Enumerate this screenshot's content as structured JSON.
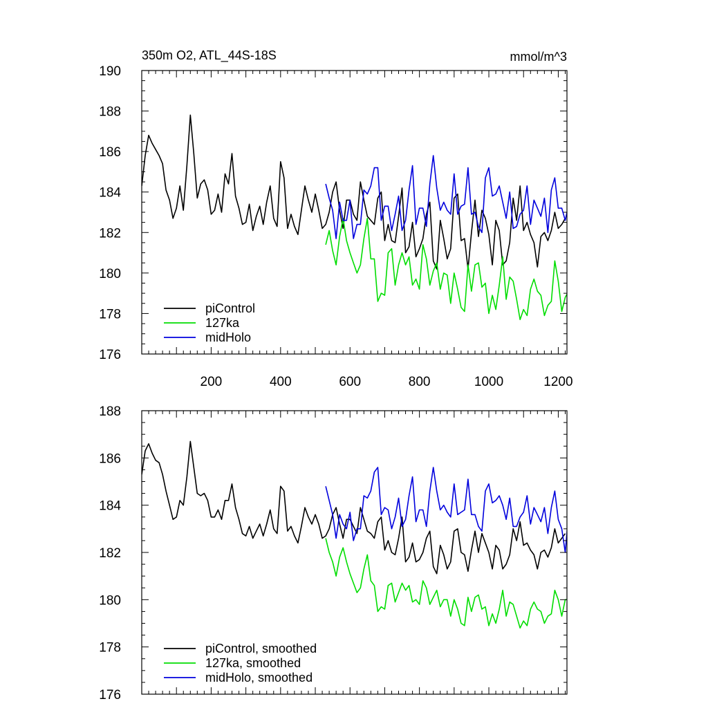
{
  "chart_data": [
    {
      "type": "line",
      "title": "350m O2, ATL_44S-18S",
      "units": "mmol/m^3",
      "xlabel": "",
      "ylabel": "",
      "xlim": [
        0,
        1225
      ],
      "ylim": [
        176,
        190
      ],
      "x_ticks": [
        200,
        400,
        600,
        800,
        1000,
        1200
      ],
      "y_ticks": [
        176,
        178,
        180,
        182,
        184,
        186,
        188,
        190
      ],
      "legend_position": "bottom-left",
      "series": [
        {
          "name": "piControl",
          "color": "#000000",
          "x_start": 0,
          "x_step": 10,
          "values": [
            184.3,
            185.8,
            186.8,
            186.4,
            186.1,
            185.8,
            185.4,
            184.1,
            183.6,
            182.7,
            183.2,
            184.3,
            183.1,
            185.3,
            187.8,
            185.9,
            183.7,
            184.4,
            184.6,
            184.1,
            182.9,
            183.1,
            183.9,
            183.0,
            184.9,
            184.4,
            185.9,
            183.8,
            183.2,
            182.4,
            182.5,
            183.4,
            182.1,
            182.8,
            183.3,
            182.4,
            183.5,
            184.3,
            182.7,
            182.3,
            185.5,
            184.7,
            182.2,
            182.9,
            182.3,
            181.9,
            183.1,
            184.3,
            183.6,
            183.0,
            183.9,
            183.1,
            182.2,
            182.4,
            183.0,
            184.0,
            184.5,
            183.1,
            182.2,
            183.6,
            183.6,
            182.9,
            182.6,
            184.5,
            183.6,
            182.8,
            182.6,
            182.4,
            183.7,
            184.0,
            181.6,
            182.4,
            181.6,
            181.5,
            182.8,
            184.2,
            181.0,
            181.3,
            182.5,
            180.8,
            181.2,
            181.7,
            182.9,
            183.5,
            180.6,
            180.2,
            182.6,
            181.7,
            180.7,
            181.2,
            183.7,
            183.9,
            181.6,
            181.7,
            180.2,
            182.0,
            183.6,
            181.8,
            183.1,
            182.7,
            181.9,
            180.4,
            182.6,
            182.1,
            180.4,
            180.6,
            181.5,
            183.7,
            182.6,
            184.3,
            182.1,
            182.5,
            181.9,
            181.5,
            180.3,
            181.8,
            182.0,
            181.6,
            182.1,
            183.0,
            182.2,
            182.4,
            182.7
          ]
        },
        {
          "name": "127ka",
          "color": "#00dd00",
          "x_start": 530,
          "x_step": 10,
          "values": [
            181.4,
            182.1,
            181.1,
            180.4,
            181.8,
            182.7,
            181.6,
            181.0,
            180.5,
            180.0,
            180.4,
            181.7,
            182.7,
            180.7,
            180.7,
            178.6,
            179.0,
            178.9,
            181.0,
            181.2,
            179.4,
            180.4,
            181.0,
            180.4,
            180.8,
            179.4,
            179.7,
            179.2,
            181.4,
            180.7,
            179.4,
            180.1,
            180.5,
            179.2,
            180.0,
            179.9,
            178.5,
            180.0,
            179.2,
            178.3,
            178.1,
            180.4,
            179.1,
            180.4,
            180.5,
            179.3,
            179.5,
            178.0,
            178.9,
            178.2,
            179.4,
            180.8,
            178.7,
            179.8,
            179.6,
            178.7,
            177.7,
            178.2,
            177.9,
            179.2,
            179.7,
            179.1,
            178.9,
            177.9,
            178.4,
            178.6,
            180.6,
            179.6,
            178.1,
            178.8,
            179.1
          ]
        },
        {
          "name": "midHolo",
          "color": "#0000dd",
          "x_start": 530,
          "x_step": 10,
          "values": [
            184.4,
            183.7,
            183.1,
            181.7,
            183.5,
            182.6,
            182.6,
            183.6,
            181.7,
            182.4,
            182.4,
            184.1,
            183.9,
            184.3,
            185.2,
            185.2,
            182.6,
            183.3,
            183.3,
            182.1,
            182.9,
            183.8,
            182.1,
            182.6,
            184.1,
            185.3,
            182.4,
            183.2,
            183.2,
            182.3,
            184.4,
            185.8,
            184.2,
            183.1,
            183.5,
            183.1,
            182.9,
            184.9,
            182.9,
            183.3,
            183.4,
            185.2,
            182.9,
            183.0,
            182.3,
            182.0,
            184.7,
            185.2,
            183.8,
            183.9,
            184.3,
            183.5,
            182.7,
            184.0,
            182.2,
            182.3,
            182.9,
            183.1,
            184.3,
            182.4,
            183.6,
            183.2,
            182.8,
            183.7,
            182.0,
            184.1,
            184.7,
            183.2,
            183.2,
            182.6,
            183.4
          ]
        }
      ]
    },
    {
      "type": "line",
      "title": "",
      "xlabel": "",
      "ylabel": "",
      "xlim": [
        0,
        1225
      ],
      "ylim": [
        176,
        188
      ],
      "y_ticks": [
        176,
        178,
        180,
        182,
        184,
        186,
        188
      ],
      "legend_position": "bottom-left",
      "series": [
        {
          "name": "piControl, smoothed",
          "color": "#000000",
          "x_start": 0,
          "x_step": 10,
          "values": [
            185.3,
            186.3,
            186.6,
            186.2,
            185.9,
            185.8,
            185.3,
            184.6,
            184.0,
            183.4,
            183.5,
            184.2,
            184.0,
            185.2,
            186.7,
            185.6,
            184.5,
            184.4,
            184.5,
            184.2,
            183.5,
            183.5,
            183.8,
            183.4,
            184.2,
            184.2,
            184.9,
            183.9,
            183.4,
            182.8,
            182.7,
            183.1,
            182.6,
            182.9,
            183.2,
            182.7,
            183.2,
            183.8,
            183.0,
            182.8,
            184.8,
            184.6,
            182.9,
            183.1,
            182.7,
            182.4,
            183.1,
            183.9,
            183.5,
            183.2,
            183.6,
            183.2,
            182.6,
            182.7,
            183.0,
            183.6,
            183.9,
            183.2,
            182.6,
            183.4,
            183.4,
            183.1,
            182.8,
            183.9,
            183.4,
            182.9,
            182.8,
            182.6,
            183.3,
            183.5,
            182.1,
            182.5,
            182.0,
            181.9,
            182.6,
            183.5,
            181.6,
            181.8,
            182.4,
            181.6,
            181.7,
            182.0,
            182.6,
            182.9,
            181.4,
            181.1,
            182.3,
            181.9,
            181.3,
            181.6,
            182.9,
            183.0,
            182.0,
            181.9,
            181.2,
            182.1,
            182.9,
            182.0,
            182.8,
            182.4,
            182.0,
            181.3,
            182.3,
            182.1,
            181.3,
            181.5,
            181.9,
            183.0,
            182.5,
            183.3,
            182.3,
            182.4,
            182.1,
            181.9,
            181.3,
            182.0,
            182.1,
            181.8,
            182.2,
            183.0,
            182.4,
            182.6,
            182.8
          ]
        },
        {
          "name": "127ka, smoothed",
          "color": "#00dd00",
          "x_start": 530,
          "x_step": 10,
          "values": [
            182.6,
            182.0,
            181.6,
            181.0,
            181.8,
            182.2,
            181.6,
            181.1,
            180.7,
            180.3,
            180.5,
            181.3,
            181.9,
            180.8,
            180.6,
            179.5,
            179.7,
            179.6,
            180.6,
            180.7,
            179.9,
            180.3,
            180.7,
            180.4,
            180.6,
            179.9,
            180.0,
            179.8,
            180.8,
            180.5,
            179.8,
            180.1,
            180.4,
            179.7,
            180.0,
            180.0,
            179.3,
            180.0,
            179.6,
            179.0,
            178.9,
            180.1,
            179.5,
            180.1,
            180.2,
            179.6,
            179.7,
            178.9,
            179.4,
            179.0,
            179.6,
            180.4,
            179.3,
            179.9,
            179.8,
            179.3,
            178.8,
            179.1,
            178.9,
            179.6,
            179.9,
            179.6,
            179.5,
            179.0,
            179.3,
            179.4,
            180.4,
            180.0,
            179.3,
            180.0,
            180.0
          ]
        },
        {
          "name": "midHolo, smoothed",
          "color": "#0000dd",
          "x_start": 530,
          "x_step": 10,
          "values": [
            184.8,
            184.2,
            183.6,
            182.6,
            183.6,
            183.2,
            183.0,
            183.7,
            182.5,
            183.0,
            183.0,
            184.4,
            184.3,
            184.6,
            185.4,
            185.6,
            183.6,
            183.9,
            183.8,
            183.0,
            183.5,
            184.3,
            183.1,
            183.4,
            184.4,
            185.2,
            183.3,
            183.8,
            183.8,
            183.1,
            184.6,
            185.6,
            184.6,
            183.8,
            184.0,
            183.7,
            183.5,
            184.9,
            183.6,
            183.7,
            183.8,
            185.1,
            183.6,
            183.6,
            183.1,
            182.9,
            184.6,
            184.9,
            184.1,
            184.2,
            184.4,
            184.0,
            183.4,
            184.3,
            183.1,
            183.1,
            183.5,
            183.7,
            184.4,
            183.2,
            183.9,
            183.6,
            183.3,
            183.9,
            182.8,
            183.9,
            184.6,
            183.4,
            183.0,
            182.0,
            183.7
          ]
        }
      ]
    }
  ]
}
